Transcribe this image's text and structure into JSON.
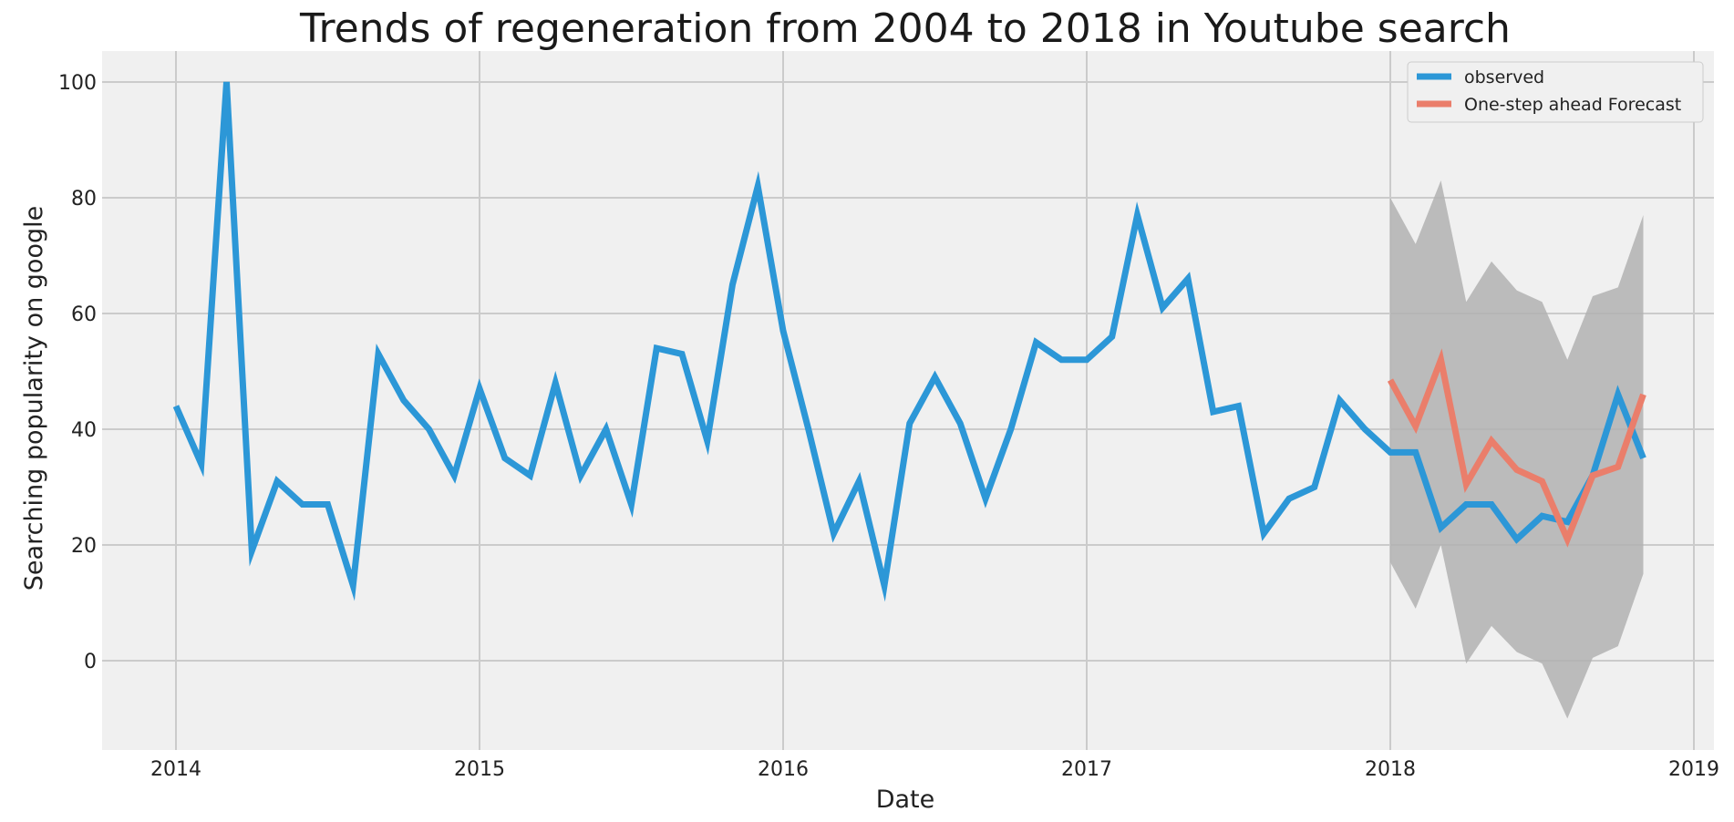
{
  "chart_data": {
    "type": "line",
    "title": "Trends of regeneration from 2004 to 2018 in Youtube search",
    "xlabel": "Date",
    "ylabel": "Searching popularity on google",
    "xlim": [
      "2013-10",
      "2019-01"
    ],
    "ylim": [
      -15,
      105
    ],
    "x_ticks": [
      "2014",
      "2015",
      "2016",
      "2017",
      "2018",
      "2019"
    ],
    "y_ticks": [
      0,
      20,
      40,
      60,
      80,
      100
    ],
    "grid": true,
    "legend_position": "upper right",
    "colors": {
      "background": "#f0f0f0",
      "grid": "#cbcbcb",
      "observed": "#2c97d7",
      "forecast": "#ea7e6b",
      "confidence_band": "#b2b2b2"
    },
    "series": [
      {
        "name": "observed",
        "x": [
          "2014-01",
          "2014-02",
          "2014-03",
          "2014-04",
          "2014-05",
          "2014-06",
          "2014-07",
          "2014-08",
          "2014-09",
          "2014-10",
          "2014-11",
          "2014-12",
          "2015-01",
          "2015-02",
          "2015-03",
          "2015-04",
          "2015-05",
          "2015-06",
          "2015-07",
          "2015-08",
          "2015-09",
          "2015-10",
          "2015-11",
          "2015-12",
          "2016-01",
          "2016-02",
          "2016-03",
          "2016-04",
          "2016-05",
          "2016-06",
          "2016-07",
          "2016-08",
          "2016-09",
          "2016-10",
          "2016-11",
          "2016-12",
          "2017-01",
          "2017-02",
          "2017-03",
          "2017-04",
          "2017-05",
          "2017-06",
          "2017-07",
          "2017-08",
          "2017-09",
          "2017-10",
          "2017-11",
          "2017-12",
          "2018-01",
          "2018-02",
          "2018-03",
          "2018-04",
          "2018-05",
          "2018-06",
          "2018-07",
          "2018-08",
          "2018-09",
          "2018-10",
          "2018-11"
        ],
        "values": [
          44,
          34,
          100,
          19,
          31,
          27,
          27,
          13,
          53,
          45,
          40,
          32,
          47,
          35,
          32,
          48,
          32,
          40,
          27,
          54,
          53,
          38,
          65,
          82,
          57,
          40,
          22,
          31,
          13,
          41,
          49,
          41,
          28,
          40,
          55,
          52,
          52,
          56,
          77,
          61,
          66,
          43,
          44,
          22,
          28,
          30,
          45,
          40,
          36,
          36,
          23,
          27,
          27,
          21,
          25,
          24,
          32,
          46,
          35
        ]
      },
      {
        "name": "One-step ahead Forecast",
        "x": [
          "2018-01",
          "2018-02",
          "2018-03",
          "2018-04",
          "2018-05",
          "2018-06",
          "2018-07",
          "2018-08",
          "2018-09",
          "2018-10",
          "2018-11"
        ],
        "values": [
          48.5,
          40.5,
          52,
          30.5,
          38,
          33,
          31,
          21,
          32,
          33.5,
          46
        ],
        "lower": [
          17,
          9,
          20,
          -0.5,
          6,
          1.5,
          -0.5,
          -10,
          0.5,
          2.5,
          15
        ],
        "upper": [
          80,
          72,
          83,
          62,
          69,
          64,
          62,
          52,
          63,
          64.5,
          77
        ]
      }
    ]
  }
}
